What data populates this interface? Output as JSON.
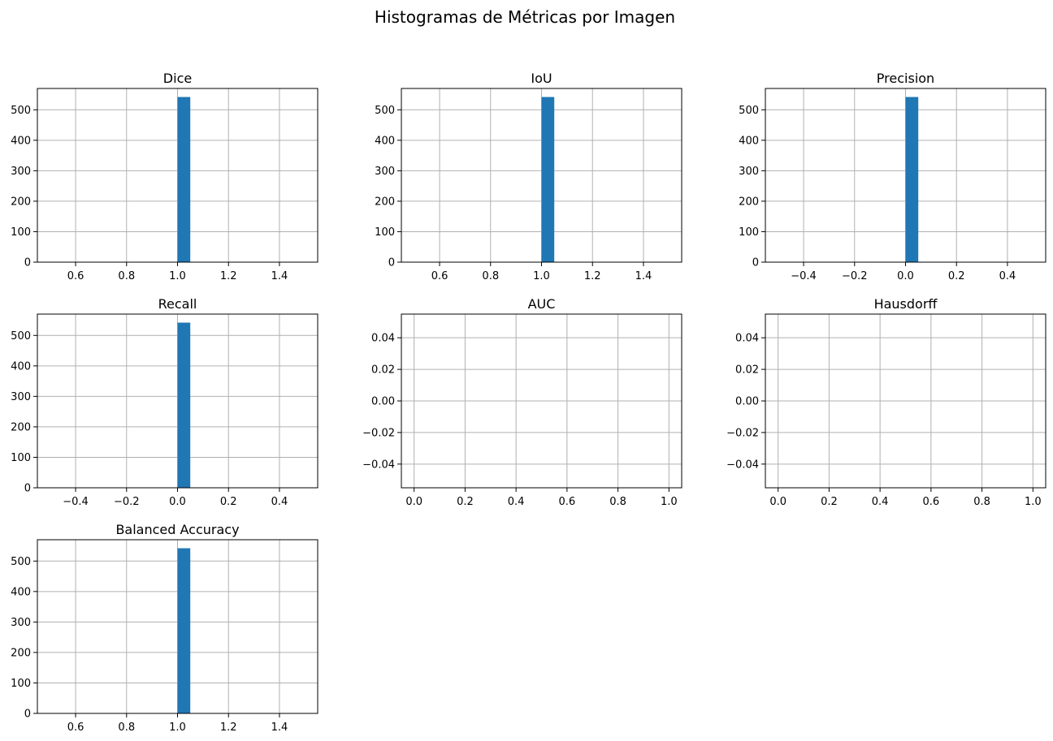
{
  "title": "Histogramas de Métricas por Imagen",
  "colors": {
    "bar": "#1f77b4",
    "grid": "#b0b0b0",
    "axis": "#000000"
  },
  "chart_data": [
    {
      "type": "bar",
      "title": "Dice",
      "bins": [
        [
          1.0,
          1.05,
          542
        ]
      ],
      "xlim": [
        0.45,
        1.55
      ],
      "ylim": [
        0,
        570
      ],
      "xticks": [
        0.6,
        0.8,
        1.0,
        1.2,
        1.4
      ],
      "xtick_labels": [
        "0.6",
        "0.8",
        "1.0",
        "1.2",
        "1.4"
      ],
      "yticks": [
        0,
        100,
        200,
        300,
        400,
        500
      ],
      "ytick_labels": [
        "0",
        "100",
        "200",
        "300",
        "400",
        "500"
      ],
      "grid": true
    },
    {
      "type": "bar",
      "title": "IoU",
      "bins": [
        [
          1.0,
          1.05,
          542
        ]
      ],
      "xlim": [
        0.45,
        1.55
      ],
      "ylim": [
        0,
        570
      ],
      "xticks": [
        0.6,
        0.8,
        1.0,
        1.2,
        1.4
      ],
      "xtick_labels": [
        "0.6",
        "0.8",
        "1.0",
        "1.2",
        "1.4"
      ],
      "yticks": [
        0,
        100,
        200,
        300,
        400,
        500
      ],
      "ytick_labels": [
        "0",
        "100",
        "200",
        "300",
        "400",
        "500"
      ],
      "grid": true
    },
    {
      "type": "bar",
      "title": "Precision",
      "bins": [
        [
          0.0,
          0.05,
          542
        ]
      ],
      "xlim": [
        -0.55,
        0.55
      ],
      "ylim": [
        0,
        570
      ],
      "xticks": [
        -0.4,
        -0.2,
        0.0,
        0.2,
        0.4
      ],
      "xtick_labels": [
        "−0.4",
        "−0.2",
        "0.0",
        "0.2",
        "0.4"
      ],
      "yticks": [
        0,
        100,
        200,
        300,
        400,
        500
      ],
      "ytick_labels": [
        "0",
        "100",
        "200",
        "300",
        "400",
        "500"
      ],
      "grid": true
    },
    {
      "type": "bar",
      "title": "Recall",
      "bins": [
        [
          0.0,
          0.05,
          542
        ]
      ],
      "xlim": [
        -0.55,
        0.55
      ],
      "ylim": [
        0,
        570
      ],
      "xticks": [
        -0.4,
        -0.2,
        0.0,
        0.2,
        0.4
      ],
      "xtick_labels": [
        "−0.4",
        "−0.2",
        "0.0",
        "0.2",
        "0.4"
      ],
      "yticks": [
        0,
        100,
        200,
        300,
        400,
        500
      ],
      "ytick_labels": [
        "0",
        "100",
        "200",
        "300",
        "400",
        "500"
      ],
      "grid": true
    },
    {
      "type": "bar",
      "title": "AUC",
      "bins": [],
      "xlim": [
        -0.05,
        1.05
      ],
      "ylim": [
        -0.055,
        0.055
      ],
      "xticks": [
        0.0,
        0.2,
        0.4,
        0.6,
        0.8,
        1.0
      ],
      "xtick_labels": [
        "0.0",
        "0.2",
        "0.4",
        "0.6",
        "0.8",
        "1.0"
      ],
      "yticks": [
        -0.04,
        -0.02,
        0.0,
        0.02,
        0.04
      ],
      "ytick_labels": [
        "−0.04",
        "−0.02",
        "0.00",
        "0.02",
        "0.04"
      ],
      "grid": true
    },
    {
      "type": "bar",
      "title": "Hausdorff",
      "bins": [],
      "xlim": [
        -0.05,
        1.05
      ],
      "ylim": [
        -0.055,
        0.055
      ],
      "xticks": [
        0.0,
        0.2,
        0.4,
        0.6,
        0.8,
        1.0
      ],
      "xtick_labels": [
        "0.0",
        "0.2",
        "0.4",
        "0.6",
        "0.8",
        "1.0"
      ],
      "yticks": [
        -0.04,
        -0.02,
        0.0,
        0.02,
        0.04
      ],
      "ytick_labels": [
        "−0.04",
        "−0.02",
        "0.00",
        "0.02",
        "0.04"
      ],
      "grid": true
    },
    {
      "type": "bar",
      "title": "Balanced Accuracy",
      "bins": [
        [
          1.0,
          1.05,
          542
        ]
      ],
      "xlim": [
        0.45,
        1.55
      ],
      "ylim": [
        0,
        570
      ],
      "xticks": [
        0.6,
        0.8,
        1.0,
        1.2,
        1.4
      ],
      "xtick_labels": [
        "0.6",
        "0.8",
        "1.0",
        "1.2",
        "1.4"
      ],
      "yticks": [
        0,
        100,
        200,
        300,
        400,
        500
      ],
      "ytick_labels": [
        "0",
        "100",
        "200",
        "300",
        "400",
        "500"
      ],
      "grid": true
    }
  ]
}
